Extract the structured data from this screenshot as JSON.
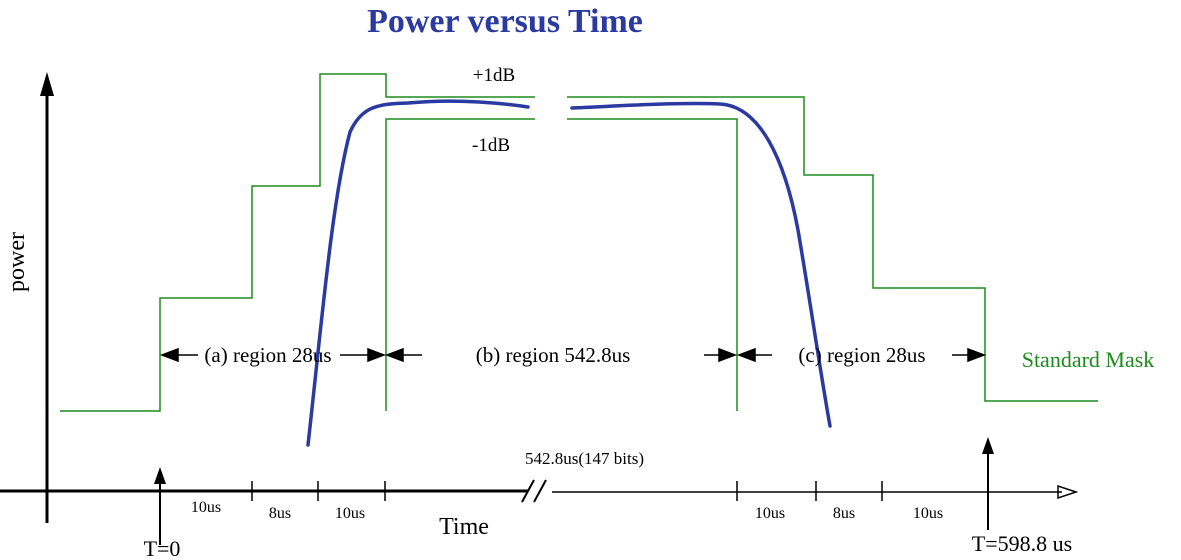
{
  "title": "Power versus Time",
  "y_axis_label": "power",
  "x_axis_label": "Time",
  "mask_label": "Standard Mask",
  "upper_tolerance": "+1dB",
  "lower_tolerance": "-1dB",
  "regions": {
    "a": "(a) region 28us",
    "b": "(b) region 542.8us",
    "c": "(c) region 28us"
  },
  "gap_label": "542.8us(147 bits)",
  "segment_labels": [
    "10us",
    "8us",
    "10us",
    "10us",
    "8us",
    "10us"
  ],
  "start_marker": "T=0",
  "end_marker": "T=598.8 us",
  "colors": {
    "title": "#2b3aa0",
    "curve": "#2b3aa0",
    "mask": "#1f8a1f",
    "axis": "#000000"
  }
}
